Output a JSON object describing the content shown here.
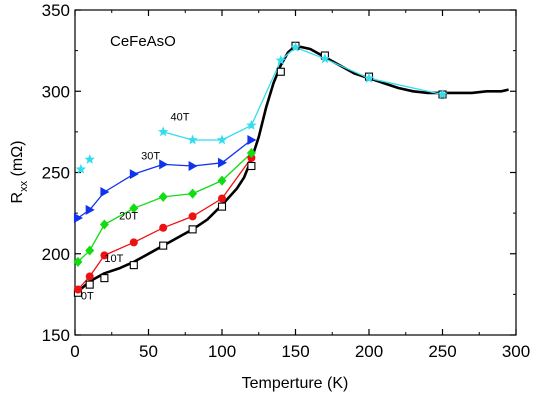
{
  "chart_data": {
    "type": "line",
    "annotation": "CeFeAsO",
    "xlabel": "Temperture (K)",
    "ylabel_main": "R",
    "ylabel_sub": "xx",
    "ylabel_unit": " (mΩ)",
    "xlim": [
      0,
      300
    ],
    "ylim": [
      150,
      350
    ],
    "xticks": [
      "0",
      "50",
      "100",
      "150",
      "200",
      "250",
      "300"
    ],
    "yticks": [
      "150",
      "200",
      "250",
      "300",
      "350"
    ],
    "grid": false,
    "series": [
      {
        "name": "0T",
        "color": "#000000",
        "marker": "square-open",
        "x": [
          2,
          10,
          20,
          40,
          60,
          80,
          100,
          120,
          140,
          150,
          170,
          200,
          250
        ],
        "y": [
          176,
          181,
          185,
          193,
          205,
          215,
          229,
          254,
          312,
          328,
          322,
          309,
          298
        ],
        "curve_x": [
          2,
          5,
          10,
          20,
          30,
          40,
          50,
          60,
          70,
          80,
          90,
          100,
          110,
          115,
          120,
          125,
          130,
          135,
          140,
          145,
          150,
          155,
          160,
          170,
          180,
          190,
          200,
          210,
          220,
          230,
          240,
          250,
          260,
          270,
          280,
          290,
          295
        ],
        "curve_y": [
          177,
          179,
          183,
          188,
          191,
          195,
          200,
          205,
          210,
          215,
          221,
          230,
          240,
          247,
          258,
          272,
          290,
          305,
          316,
          324,
          328,
          327,
          326,
          321,
          316,
          311,
          308,
          305,
          302,
          300,
          299,
          299,
          299,
          299,
          300,
          300,
          301
        ]
      },
      {
        "name": "10T",
        "color": "#ee1111",
        "marker": "circle",
        "x": [
          2,
          10,
          20,
          40,
          60,
          80,
          100,
          120
        ],
        "y": [
          178,
          186,
          199,
          207,
          216,
          223,
          234,
          259
        ]
      },
      {
        "name": "20T",
        "color": "#11dd11",
        "marker": "diamond",
        "x": [
          2,
          10,
          20,
          40,
          60,
          80,
          100,
          120
        ],
        "y": [
          195,
          202,
          218,
          228,
          235,
          237,
          245,
          262
        ]
      },
      {
        "name": "30T",
        "color": "#1133ee",
        "marker": "triangle-right",
        "x": [
          2,
          10,
          20,
          40,
          60,
          80,
          100,
          120
        ],
        "y": [
          222,
          227,
          238,
          249,
          255,
          254,
          256,
          270
        ]
      },
      {
        "name": "40T",
        "color": "#33ddee",
        "marker": "star",
        "x": [
          60,
          80,
          100,
          120,
          140,
          150,
          170,
          200,
          250
        ],
        "y": [
          275,
          270,
          270,
          279,
          319,
          327,
          320,
          308,
          298
        ]
      },
      {
        "name": "",
        "color": "#33ddee",
        "marker": "star",
        "isolated": true,
        "x": [
          4,
          10
        ],
        "y": [
          252,
          258
        ]
      }
    ],
    "field_labels": [
      {
        "text": "0T",
        "x": 4,
        "y": 172
      },
      {
        "text": "10T",
        "x": 20,
        "y": 195
      },
      {
        "text": "20T",
        "x": 30,
        "y": 221
      },
      {
        "text": "30T",
        "x": 45,
        "y": 258
      },
      {
        "text": "40T",
        "x": 65,
        "y": 282
      }
    ]
  }
}
